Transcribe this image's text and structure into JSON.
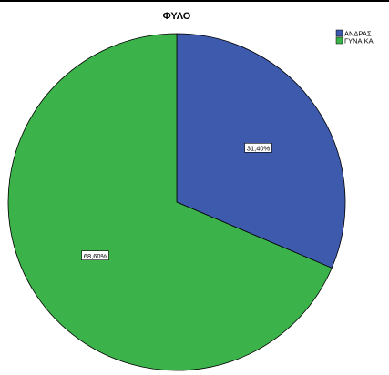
{
  "chart_data": {
    "type": "pie",
    "title": "ΦΥΛΟ",
    "categories": [
      "ΑΝΔΡΑΣ",
      "ΓΥΝΑΙΚΑ"
    ],
    "values": [
      31.4,
      68.6
    ],
    "data_labels": [
      "31,40%",
      "68,60%"
    ],
    "colors": [
      "#3d5aad",
      "#3cb34a"
    ],
    "legend_position": "top-right",
    "start_angle_deg": 0,
    "direction": "clockwise"
  }
}
